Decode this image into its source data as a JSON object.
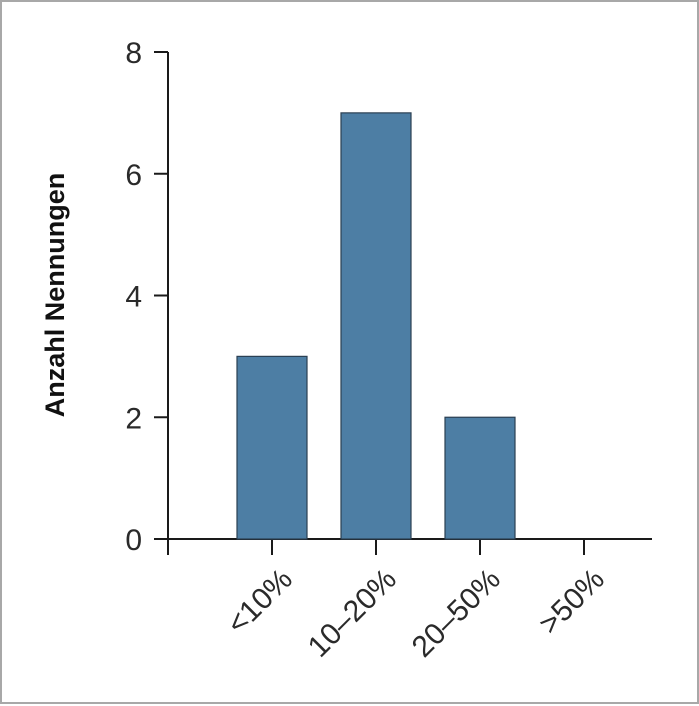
{
  "chart_data": {
    "type": "bar",
    "categories": [
      "<10%",
      "10–20%",
      "20–50%",
      ">50%"
    ],
    "values": [
      3,
      7,
      2,
      0
    ],
    "ylabel": "Anzahl Nennungen",
    "xlabel": "",
    "ylim": [
      0,
      8
    ],
    "yticks": [
      0,
      2,
      4,
      6,
      8
    ],
    "yticks_labels": [
      "0",
      "2",
      "4",
      "6",
      "8"
    ],
    "bar_color": "#4d7ea4",
    "bar_edge_color": "#2b3f52",
    "grid": false
  }
}
